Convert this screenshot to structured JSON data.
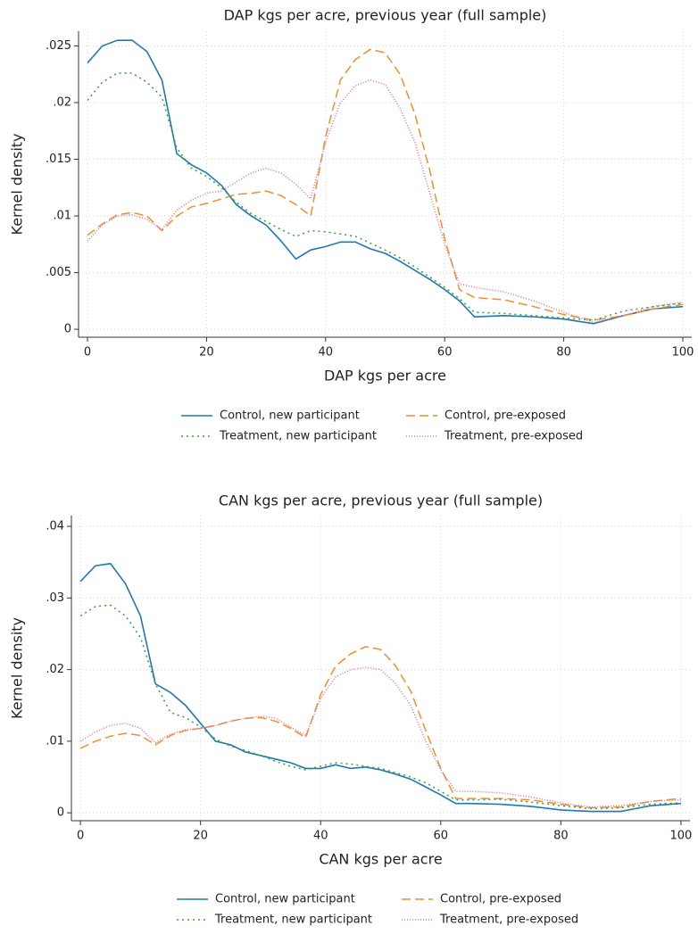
{
  "chart_data": [
    {
      "type": "line",
      "title": "DAP kgs per acre, previous year (full sample)",
      "x_label": "DAP kgs per acre",
      "y_label": "Kernel density",
      "x": [
        0,
        2.5,
        5,
        7.5,
        10,
        12.5,
        15,
        17.5,
        20,
        22.5,
        25,
        27.5,
        30,
        32.5,
        35,
        37.5,
        40,
        42.5,
        45,
        47.5,
        50,
        52.5,
        55,
        57.5,
        60,
        62.5,
        65,
        70,
        75,
        80,
        85,
        90,
        95,
        100
      ],
      "series": [
        {
          "name": "Control, new participant",
          "color": "#1f77b4",
          "style": "solid",
          "values": [
            0.0235,
            0.025,
            0.0255,
            0.0255,
            0.0245,
            0.022,
            0.0155,
            0.0145,
            0.0138,
            0.0127,
            0.011,
            0.01,
            0.0092,
            0.0078,
            0.0062,
            0.007,
            0.0073,
            0.0077,
            0.0077,
            0.0071,
            0.0067,
            0.006,
            0.0052,
            0.0044,
            0.0035,
            0.0025,
            0.0011,
            0.0012,
            0.0011,
            0.0009,
            0.0005,
            0.0012,
            0.0018,
            0.002
          ]
        },
        {
          "name": "Control, pre-exposed",
          "color": "#f28e2b",
          "style": "dash",
          "values": [
            0.0083,
            0.0093,
            0.0101,
            0.0103,
            0.01,
            0.0087,
            0.01,
            0.0108,
            0.0111,
            0.0115,
            0.0119,
            0.012,
            0.0122,
            0.0118,
            0.011,
            0.01,
            0.017,
            0.022,
            0.0238,
            0.0247,
            0.0244,
            0.0225,
            0.019,
            0.014,
            0.008,
            0.0035,
            0.0028,
            0.0026,
            0.002,
            0.0013,
            0.0008,
            0.0012,
            0.0018,
            0.0022
          ]
        },
        {
          "name": "Treatment, new participant",
          "color": "#3a9e3a",
          "style": "dot",
          "values": [
            0.0202,
            0.0218,
            0.0226,
            0.0226,
            0.0218,
            0.0205,
            0.016,
            0.0142,
            0.0135,
            0.0125,
            0.0112,
            0.0102,
            0.0095,
            0.0088,
            0.0082,
            0.0087,
            0.0086,
            0.0084,
            0.0082,
            0.0076,
            0.007,
            0.0063,
            0.0055,
            0.0046,
            0.0037,
            0.0027,
            0.0015,
            0.0014,
            0.0012,
            0.001,
            0.0008,
            0.0016,
            0.002,
            0.0023
          ]
        },
        {
          "name": "Treatment, pre-exposed",
          "color": "#e0709a",
          "style": "finedot",
          "values": [
            0.0078,
            0.0092,
            0.01,
            0.0101,
            0.0097,
            0.0088,
            0.0105,
            0.0114,
            0.012,
            0.0122,
            0.013,
            0.0138,
            0.0142,
            0.0138,
            0.0128,
            0.0115,
            0.0165,
            0.02,
            0.0215,
            0.022,
            0.0216,
            0.0195,
            0.0165,
            0.012,
            0.0075,
            0.004,
            0.0037,
            0.0033,
            0.0025,
            0.0015,
            0.0006,
            0.0012,
            0.002,
            0.0024
          ]
        }
      ],
      "xlim": [
        -1.5,
        101.5
      ],
      "xticks": [
        0,
        20,
        40,
        60,
        80,
        100
      ],
      "ylim": [
        -0.0007,
        0.0263
      ],
      "yticks": [
        0,
        {
          "value": 0.005,
          "label": ".005"
        },
        {
          "value": 0.01,
          "label": ".01"
        },
        {
          "value": 0.015,
          "label": ".015"
        },
        {
          "value": 0.02,
          "label": ".02"
        },
        {
          "value": 0.025,
          "label": ".025"
        }
      ],
      "grid": true,
      "legend": "bottom"
    },
    {
      "type": "line",
      "title": "CAN kgs per acre, previous year (full sample)",
      "x_label": "CAN kgs per acre",
      "y_label": "Kernel density",
      "x": [
        0,
        2.5,
        5,
        7.5,
        10,
        12.5,
        15,
        17.5,
        20,
        22.5,
        25,
        27.5,
        30,
        32.5,
        35,
        37.5,
        40,
        42.5,
        45,
        47.5,
        50,
        52.5,
        55,
        57.5,
        60,
        62.5,
        65,
        70,
        75,
        80,
        85,
        90,
        95,
        100
      ],
      "series": [
        {
          "name": "Control, new participant",
          "color": "#1f77b4",
          "style": "solid",
          "values": [
            0.0323,
            0.0345,
            0.0348,
            0.032,
            0.0275,
            0.018,
            0.0168,
            0.015,
            0.0125,
            0.01,
            0.0095,
            0.0085,
            0.008,
            0.0075,
            0.007,
            0.0062,
            0.0062,
            0.0067,
            0.0062,
            0.0064,
            0.006,
            0.0054,
            0.0047,
            0.0036,
            0.0025,
            0.0013,
            0.0013,
            0.0012,
            0.0009,
            0.0004,
            0.0002,
            0.0002,
            0.001,
            0.0013
          ]
        },
        {
          "name": "Control, pre-exposed",
          "color": "#f28e2b",
          "style": "dash",
          "values": [
            0.009,
            0.01,
            0.0107,
            0.0111,
            0.0108,
            0.0095,
            0.0108,
            0.0115,
            0.0118,
            0.0122,
            0.0128,
            0.0132,
            0.0133,
            0.0128,
            0.0118,
            0.0105,
            0.0165,
            0.0205,
            0.0222,
            0.0232,
            0.0228,
            0.0205,
            0.017,
            0.0115,
            0.0062,
            0.002,
            0.002,
            0.002,
            0.0018,
            0.0012,
            0.0007,
            0.0008,
            0.0016,
            0.002
          ]
        },
        {
          "name": "Treatment, new participant",
          "color": "#3a9e3a",
          "style": "dot",
          "values": [
            0.0275,
            0.0288,
            0.029,
            0.0275,
            0.0245,
            0.018,
            0.014,
            0.0133,
            0.012,
            0.0103,
            0.0093,
            0.0087,
            0.008,
            0.0072,
            0.0065,
            0.006,
            0.0065,
            0.007,
            0.0068,
            0.0065,
            0.0062,
            0.0056,
            0.005,
            0.0042,
            0.003,
            0.0018,
            0.0018,
            0.0019,
            0.0015,
            0.001,
            0.0006,
            0.0007,
            0.0012,
            0.0014
          ]
        },
        {
          "name": "Treatment, pre-exposed",
          "color": "#e0709a",
          "style": "finedot",
          "values": [
            0.01,
            0.0113,
            0.0122,
            0.0125,
            0.0118,
            0.0098,
            0.011,
            0.0116,
            0.0118,
            0.0122,
            0.0128,
            0.0132,
            0.0135,
            0.0132,
            0.012,
            0.0108,
            0.016,
            0.019,
            0.02,
            0.0203,
            0.02,
            0.018,
            0.015,
            0.01,
            0.006,
            0.003,
            0.003,
            0.0028,
            0.0022,
            0.0014,
            0.0008,
            0.001,
            0.0016,
            0.0018
          ]
        }
      ],
      "xlim": [
        -1.5,
        101.5
      ],
      "xticks": [
        0,
        20,
        40,
        60,
        80,
        100
      ],
      "ylim": [
        -0.0011,
        0.0415
      ],
      "yticks": [
        0,
        {
          "value": 0.01,
          "label": ".01"
        },
        {
          "value": 0.02,
          "label": ".02"
        },
        {
          "value": 0.03,
          "label": ".03"
        },
        {
          "value": 0.04,
          "label": ".04"
        }
      ],
      "grid": true,
      "legend": "bottom"
    }
  ]
}
